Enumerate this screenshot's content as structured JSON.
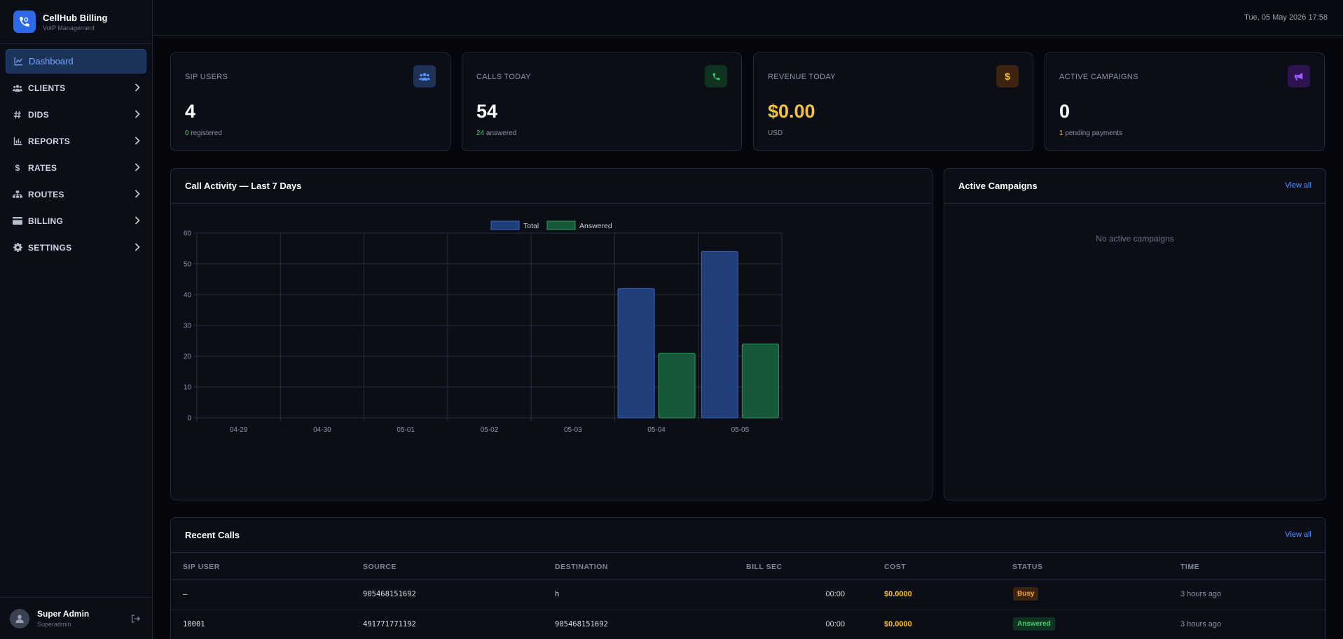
{
  "brand": {
    "title": "CellHub Billing",
    "subtitle": "VoIP Management"
  },
  "nav": [
    {
      "label": "Dashboard",
      "icon": "chart-line-icon",
      "active": true
    },
    {
      "label": "CLIENTS",
      "icon": "users-icon"
    },
    {
      "label": "DIDS",
      "icon": "hash-icon"
    },
    {
      "label": "REPORTS",
      "icon": "bar-chart-icon"
    },
    {
      "label": "RATES",
      "icon": "dollar-icon"
    },
    {
      "label": "ROUTES",
      "icon": "sitemap-icon"
    },
    {
      "label": "BILLING",
      "icon": "credit-card-icon"
    },
    {
      "label": "SETTINGS",
      "icon": "gear-icon"
    }
  ],
  "user": {
    "name": "Super Admin",
    "role": "Superadmin"
  },
  "topbar": {
    "datetime": "Tue, 05 May 2026 17:58"
  },
  "stats": [
    {
      "label": "SIP USERS",
      "value": "4",
      "sub_value": "0",
      "sub_text": "registered",
      "icon": "users-icon",
      "icon_bg": "#1d3256",
      "icon_color": "#5b93ff",
      "value_color": "#ffffff",
      "sub_color": "#3ecf6e"
    },
    {
      "label": "CALLS TODAY",
      "value": "54",
      "sub_value": "24",
      "sub_text": "answered",
      "icon": "phone-icon",
      "icon_bg": "#0f3320",
      "icon_color": "#3ecf6e",
      "value_color": "#ffffff",
      "sub_color": "#3ecf6e"
    },
    {
      "label": "REVENUE TODAY",
      "value": "$0.00",
      "sub_value": "",
      "sub_text": "USD",
      "icon": "dollar-icon",
      "icon_bg": "#3d2410",
      "icon_color": "#f6c23a",
      "value_color": "#f6c23a",
      "sub_color": "#8c95a6"
    },
    {
      "label": "ACTIVE CAMPAIGNS",
      "value": "0",
      "sub_value": "1",
      "sub_text": "pending payments",
      "icon": "megaphone-icon",
      "icon_bg": "#2d1450",
      "icon_color": "#a35cff",
      "value_color": "#ffffff",
      "sub_color": "#f6c23a"
    }
  ],
  "chart_panel": {
    "title": "Call Activity — Last 7 Days"
  },
  "campaigns_panel": {
    "title": "Active Campaigns",
    "link": "View all",
    "empty": "No active campaigns"
  },
  "chart_data": {
    "type": "bar",
    "categories": [
      "04-29",
      "04-30",
      "05-01",
      "05-02",
      "05-03",
      "05-04",
      "05-05"
    ],
    "series": [
      {
        "name": "Total",
        "values": [
          0,
          0,
          0,
          0,
          0,
          42,
          54
        ],
        "color": "#1f3e7a",
        "border": "#3864c4"
      },
      {
        "name": "Answered",
        "values": [
          0,
          0,
          0,
          0,
          0,
          21,
          24
        ],
        "color": "#18583a",
        "border": "#2f9a5c"
      }
    ],
    "ylim": [
      0,
      60
    ],
    "yticks": [
      "0",
      "10",
      "20",
      "30",
      "40",
      "50",
      "60"
    ],
    "grid": true,
    "legend": "top-center"
  },
  "recent_calls": {
    "title": "Recent Calls",
    "link": "View all",
    "columns": [
      "SIP USER",
      "SOURCE",
      "DESTINATION",
      "BILL SEC",
      "COST",
      "STATUS",
      "TIME"
    ],
    "rows": [
      {
        "sip_user": "—",
        "source": "905468151692",
        "destination": "h",
        "bill_sec": "00:00",
        "cost": "$0.0000",
        "status": "Busy",
        "time": "3 hours ago"
      },
      {
        "sip_user": "10001",
        "source": "491771771192",
        "destination": "905468151692",
        "bill_sec": "00:00",
        "cost": "$0.0000",
        "status": "Answered",
        "time": "3 hours ago"
      }
    ]
  }
}
